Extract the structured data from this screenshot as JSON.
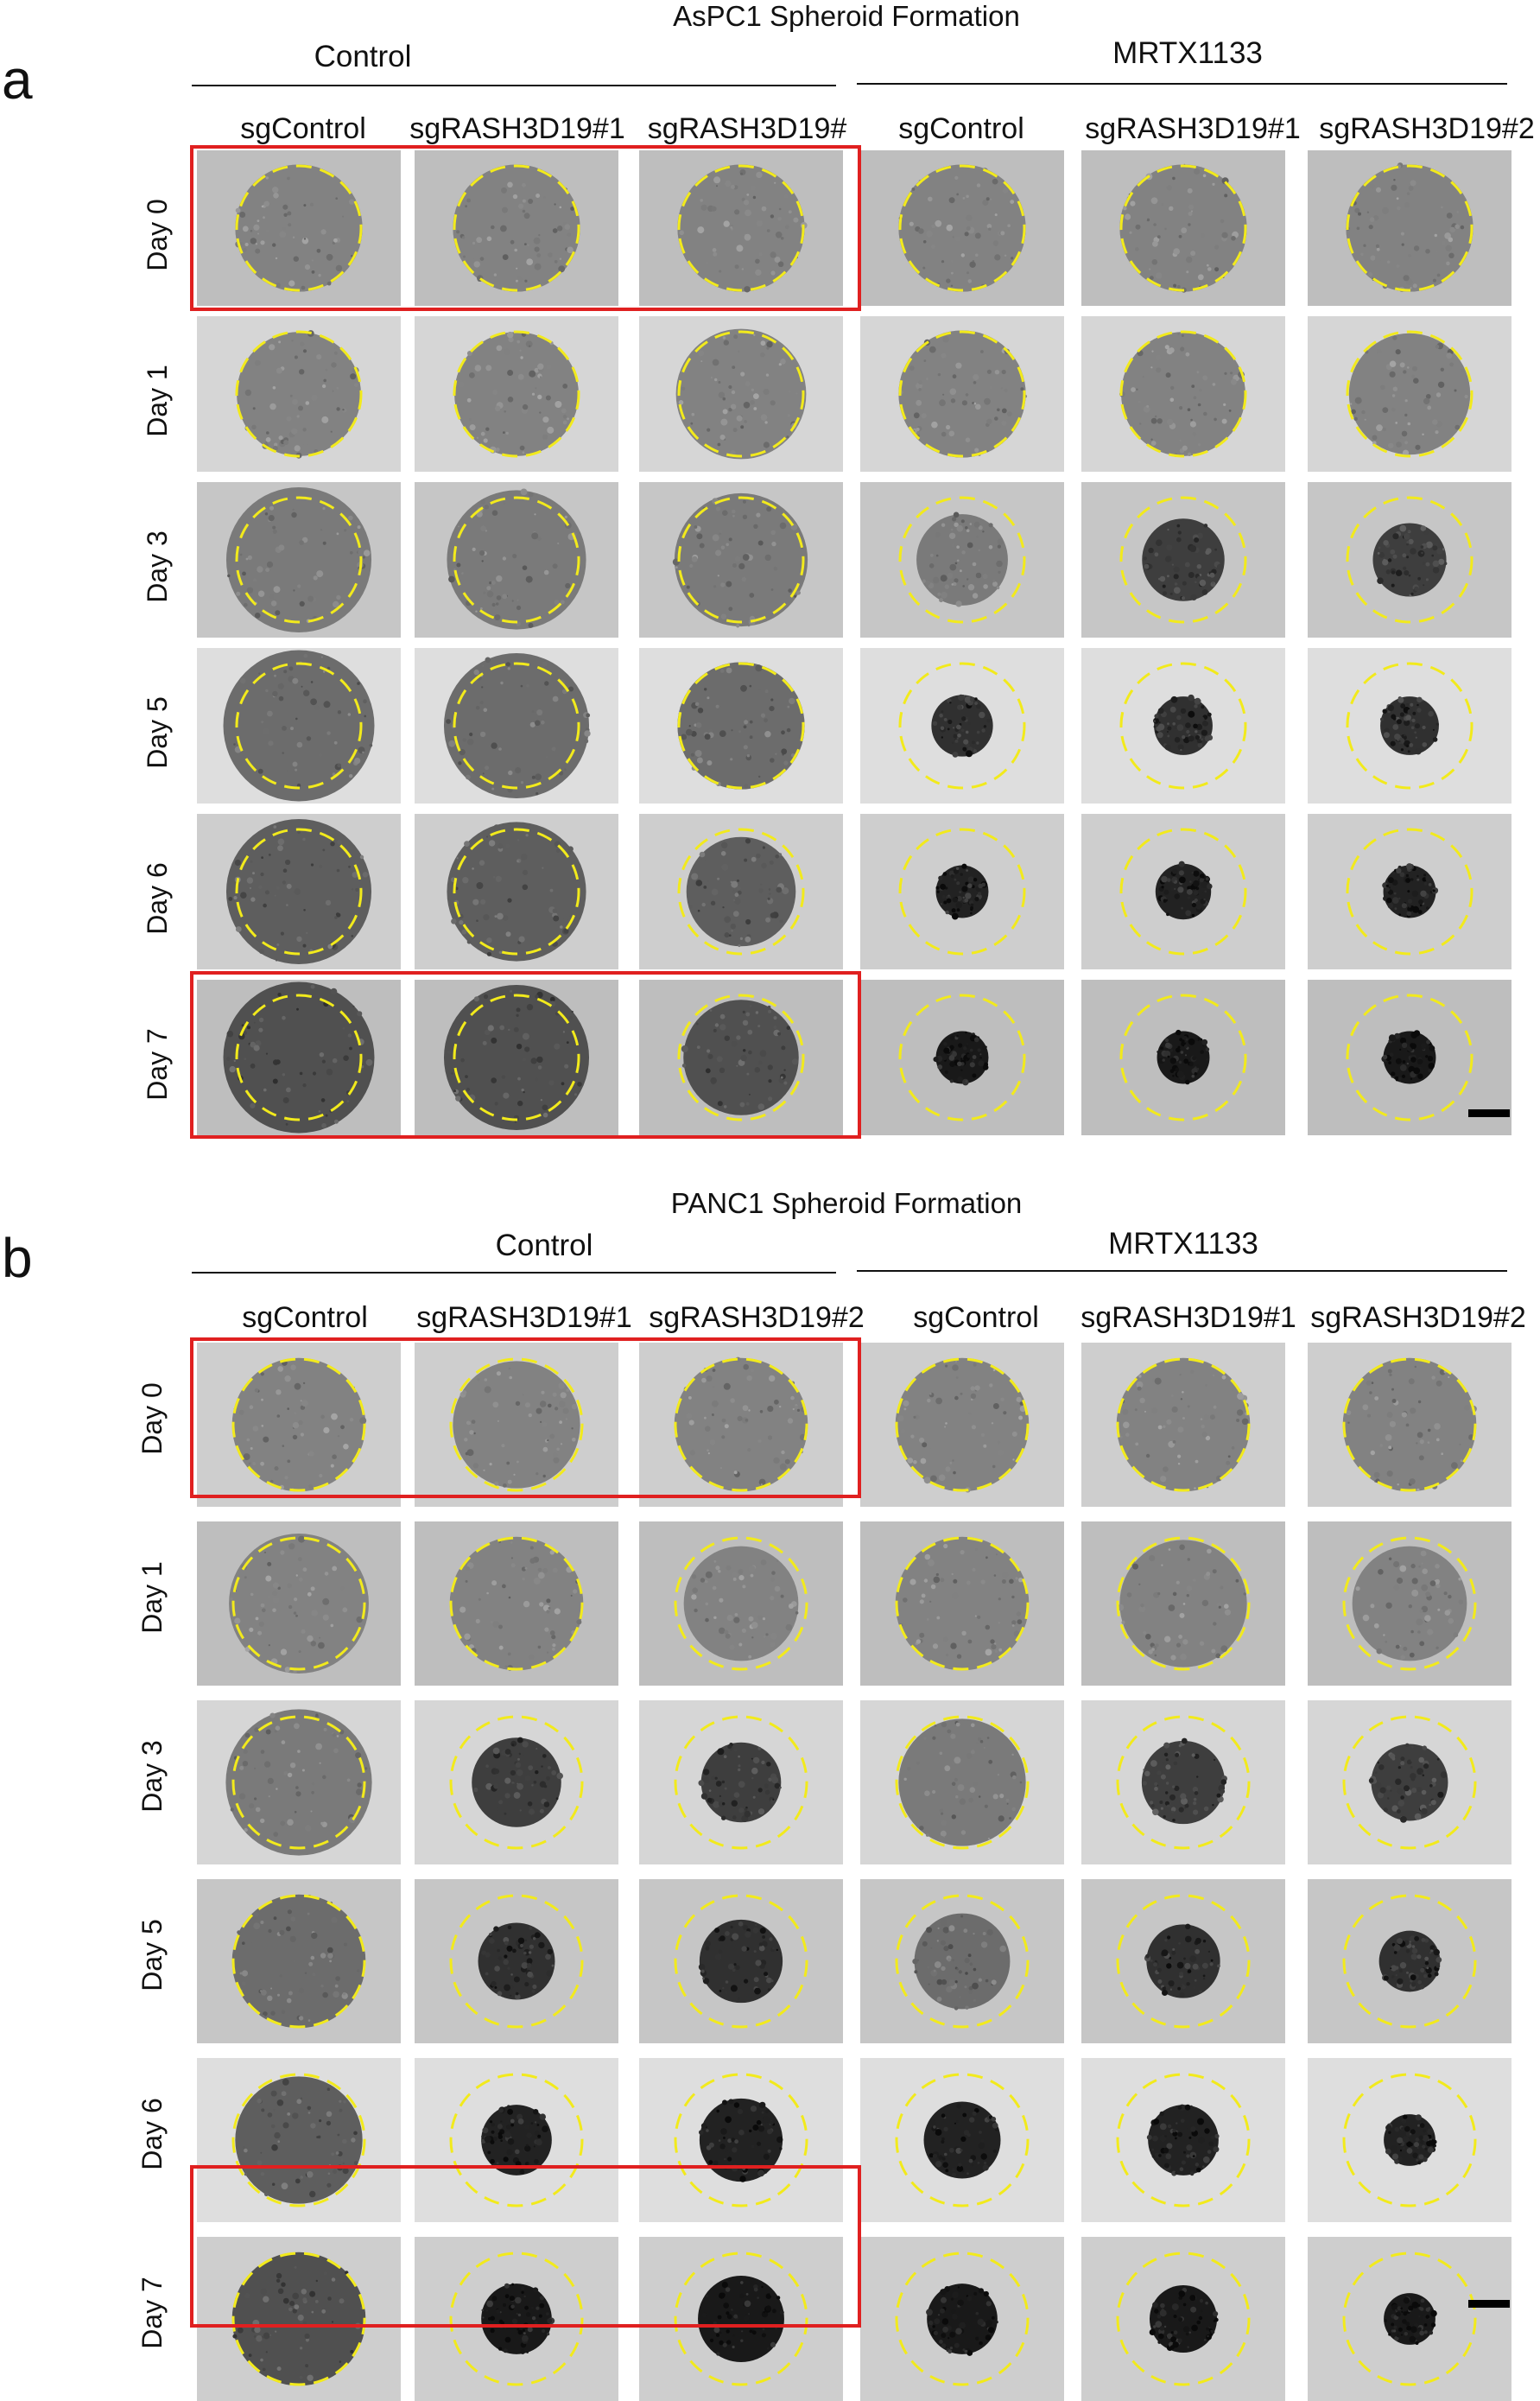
{
  "colors": {
    "dashed_circle": "#f2ea1c",
    "highlight_box": "#e02020",
    "tile_background": "#c4c4c4",
    "spheroid": "#333333"
  },
  "panels": [
    {
      "letter": "a",
      "title": "AsPC1 Spheroid Formation",
      "groups": [
        "Control",
        "MRTX1133"
      ],
      "columns": [
        "sgControl",
        "sgRASH3D19#1",
        "sgRASH3D19#",
        "sgControl",
        "sgRASH3D19#1",
        "sgRASH3D19#2"
      ],
      "rows": [
        "Day 0",
        "Day 1",
        "Day 3",
        "Day 5",
        "Day 6",
        "Day 7"
      ],
      "spheroid_size_fraction": [
        [
          0.38,
          0.38,
          0.38,
          0.38,
          0.38,
          0.38
        ],
        [
          0.37,
          0.37,
          0.39,
          0.38,
          0.37,
          0.36
        ],
        [
          0.44,
          0.42,
          0.4,
          0.26,
          0.23,
          0.2
        ],
        [
          0.46,
          0.44,
          0.38,
          0.16,
          0.15,
          0.15
        ],
        [
          0.44,
          0.42,
          0.32,
          0.13,
          0.14,
          0.13
        ],
        [
          0.46,
          0.44,
          0.34,
          0.13,
          0.13,
          0.13
        ]
      ],
      "scale_bar": true
    },
    {
      "letter": "b",
      "title": "PANC1 Spheroid Formation",
      "groups": [
        "Control",
        "MRTX1133"
      ],
      "columns": [
        "sgControl",
        "sgRASH3D19#1",
        "sgRASH3D19#2",
        "sgControl",
        "sgRASH3D19#1",
        "sgRASH3D19#2"
      ],
      "rows": [
        "Day 0",
        "Day 1",
        "Day 3",
        "Day 5",
        "Day 6",
        "Day 7"
      ],
      "spheroid_size_fraction": [
        [
          0.38,
          0.36,
          0.38,
          0.38,
          0.38,
          0.38
        ],
        [
          0.4,
          0.38,
          0.32,
          0.38,
          0.36,
          0.32
        ],
        [
          0.42,
          0.24,
          0.21,
          0.36,
          0.22,
          0.2
        ],
        [
          0.38,
          0.2,
          0.22,
          0.26,
          0.19,
          0.15
        ],
        [
          0.36,
          0.18,
          0.22,
          0.2,
          0.18,
          0.12
        ],
        [
          0.38,
          0.18,
          0.23,
          0.18,
          0.17,
          0.12
        ]
      ],
      "scale_bar": true
    }
  ]
}
